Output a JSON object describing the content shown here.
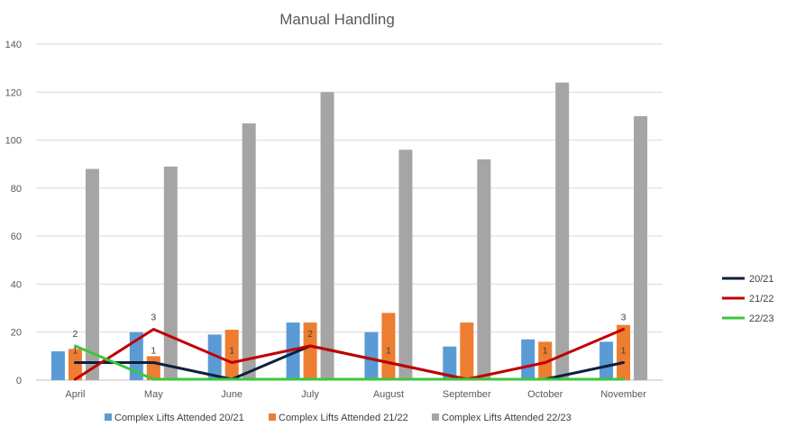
{
  "chart_data": {
    "type": "bar",
    "title": "Manual Handling",
    "categories": [
      "April",
      "May",
      "June",
      "July",
      "August",
      "September",
      "October",
      "November"
    ],
    "ylim": [
      0,
      140
    ],
    "yticks": [
      0,
      20,
      40,
      60,
      80,
      100,
      120,
      140
    ],
    "grid": true,
    "series": [
      {
        "name": "Complex Lifts Attended 20/21",
        "kind": "bar",
        "color": "#5B9BD5",
        "values": [
          12,
          20,
          19,
          24,
          20,
          14,
          17,
          16
        ]
      },
      {
        "name": "Complex Lifts Attended 21/22",
        "kind": "bar",
        "color": "#ED7D31",
        "values": [
          13,
          10,
          21,
          24,
          28,
          24,
          16,
          23
        ]
      },
      {
        "name": "Complex Lifts Attended 22/23",
        "kind": "bar",
        "color": "#A5A5A5",
        "values": [
          88,
          89,
          107,
          120,
          96,
          92,
          124,
          110
        ]
      }
    ],
    "line_series": [
      {
        "name": "20/21",
        "color": "#0F1F3D",
        "values": [
          1,
          1,
          0,
          2,
          1,
          0,
          0,
          1
        ],
        "labels": [
          "1",
          "1",
          "",
          "2",
          "",
          "",
          "",
          "1"
        ]
      },
      {
        "name": "21/22",
        "color": "#C00000",
        "values": [
          0,
          3,
          1,
          2,
          1,
          0,
          1,
          3
        ],
        "labels": [
          "",
          "3",
          "1",
          "",
          "1",
          "",
          "1",
          "3"
        ]
      },
      {
        "name": "22/23",
        "color": "#3CC63C",
        "values": [
          2,
          0,
          0,
          0,
          0,
          0,
          0,
          0
        ],
        "labels": [
          "2",
          "",
          "",
          "",
          "",
          "",
          "",
          ""
        ]
      }
    ],
    "legend_bottom": "bottom",
    "legend_lines": "right"
  }
}
